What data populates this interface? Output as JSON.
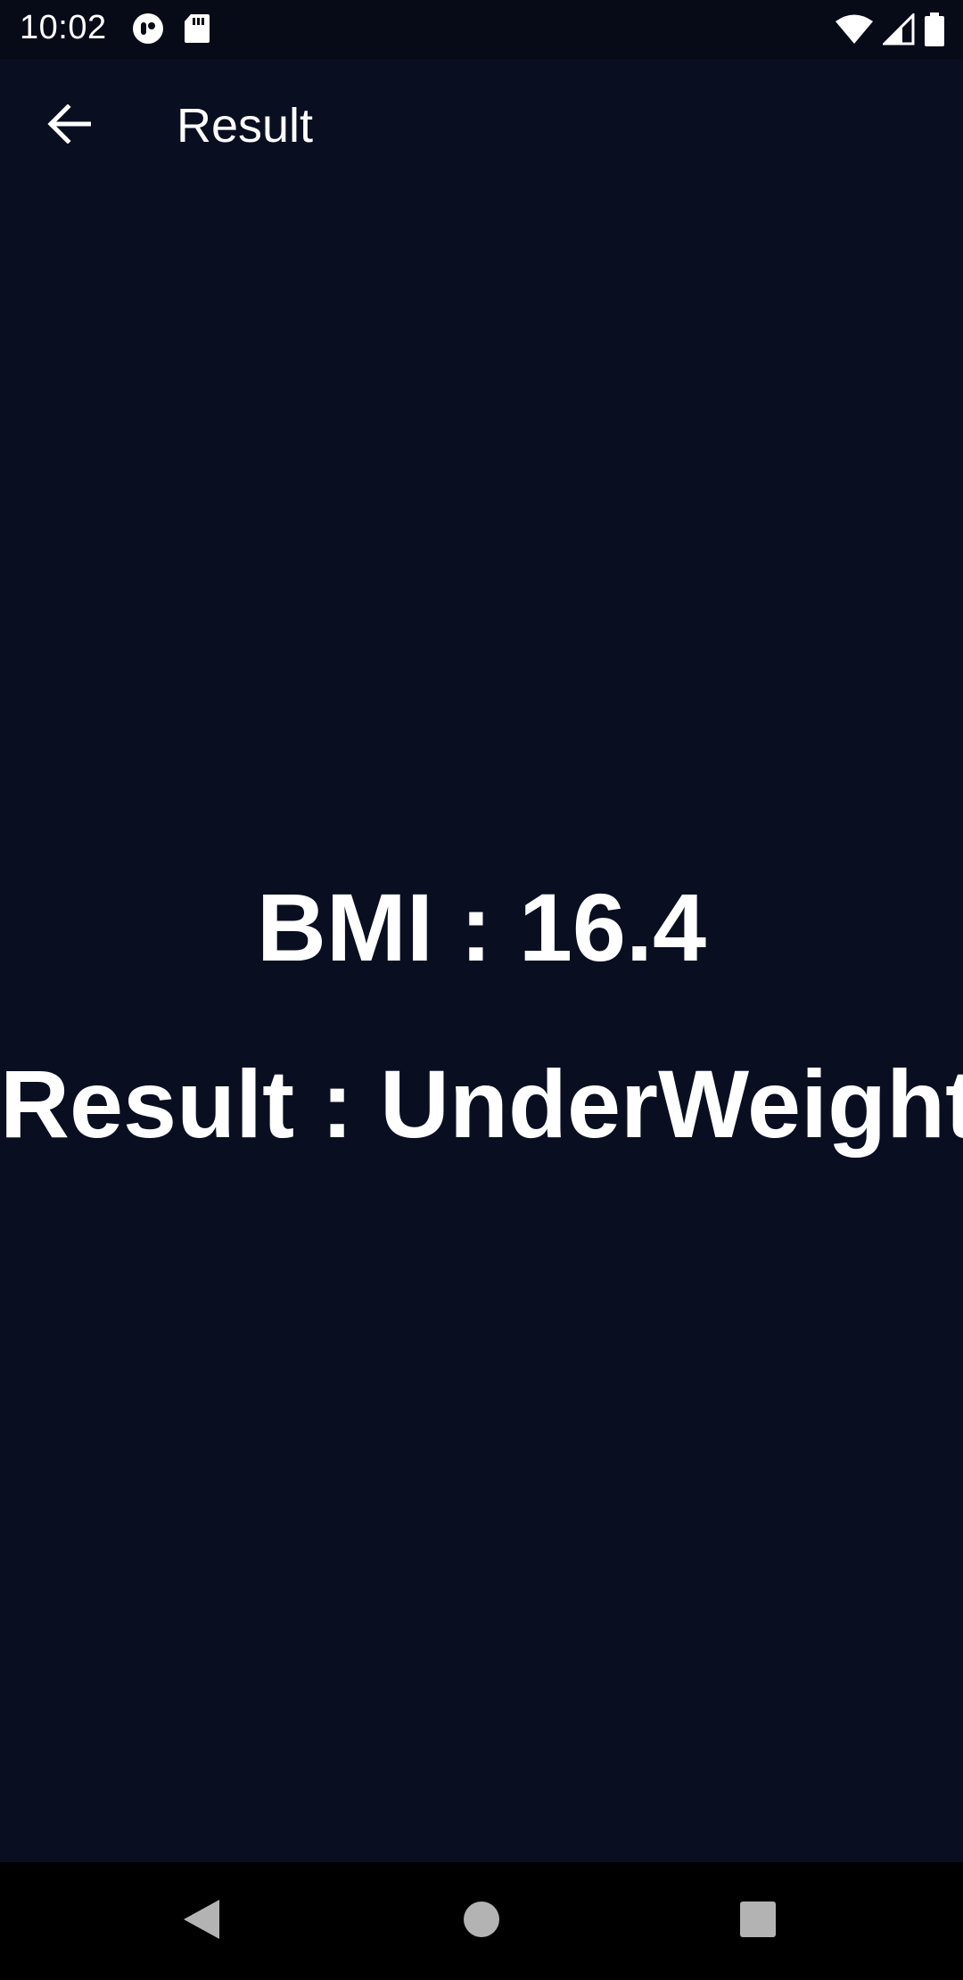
{
  "status_bar": {
    "time": "10:02",
    "left_icons": [
      "cloud-app-icon",
      "sd-card-icon"
    ],
    "right_icons": [
      "wifi-icon",
      "cell-signal-icon",
      "battery-icon"
    ]
  },
  "app_bar": {
    "back_icon": "arrow-back-icon",
    "title": "Result"
  },
  "result": {
    "bmi_text": "BMI : 16.4",
    "result_text": "Result : UnderWeight"
  },
  "nav_bar": {
    "buttons": [
      "back-triangle-icon",
      "home-circle-icon",
      "recents-square-icon"
    ]
  },
  "colors": {
    "background": "#0a0e21",
    "status_bar": "#070a17",
    "nav_bar": "#000000",
    "text": "#ffffff"
  }
}
